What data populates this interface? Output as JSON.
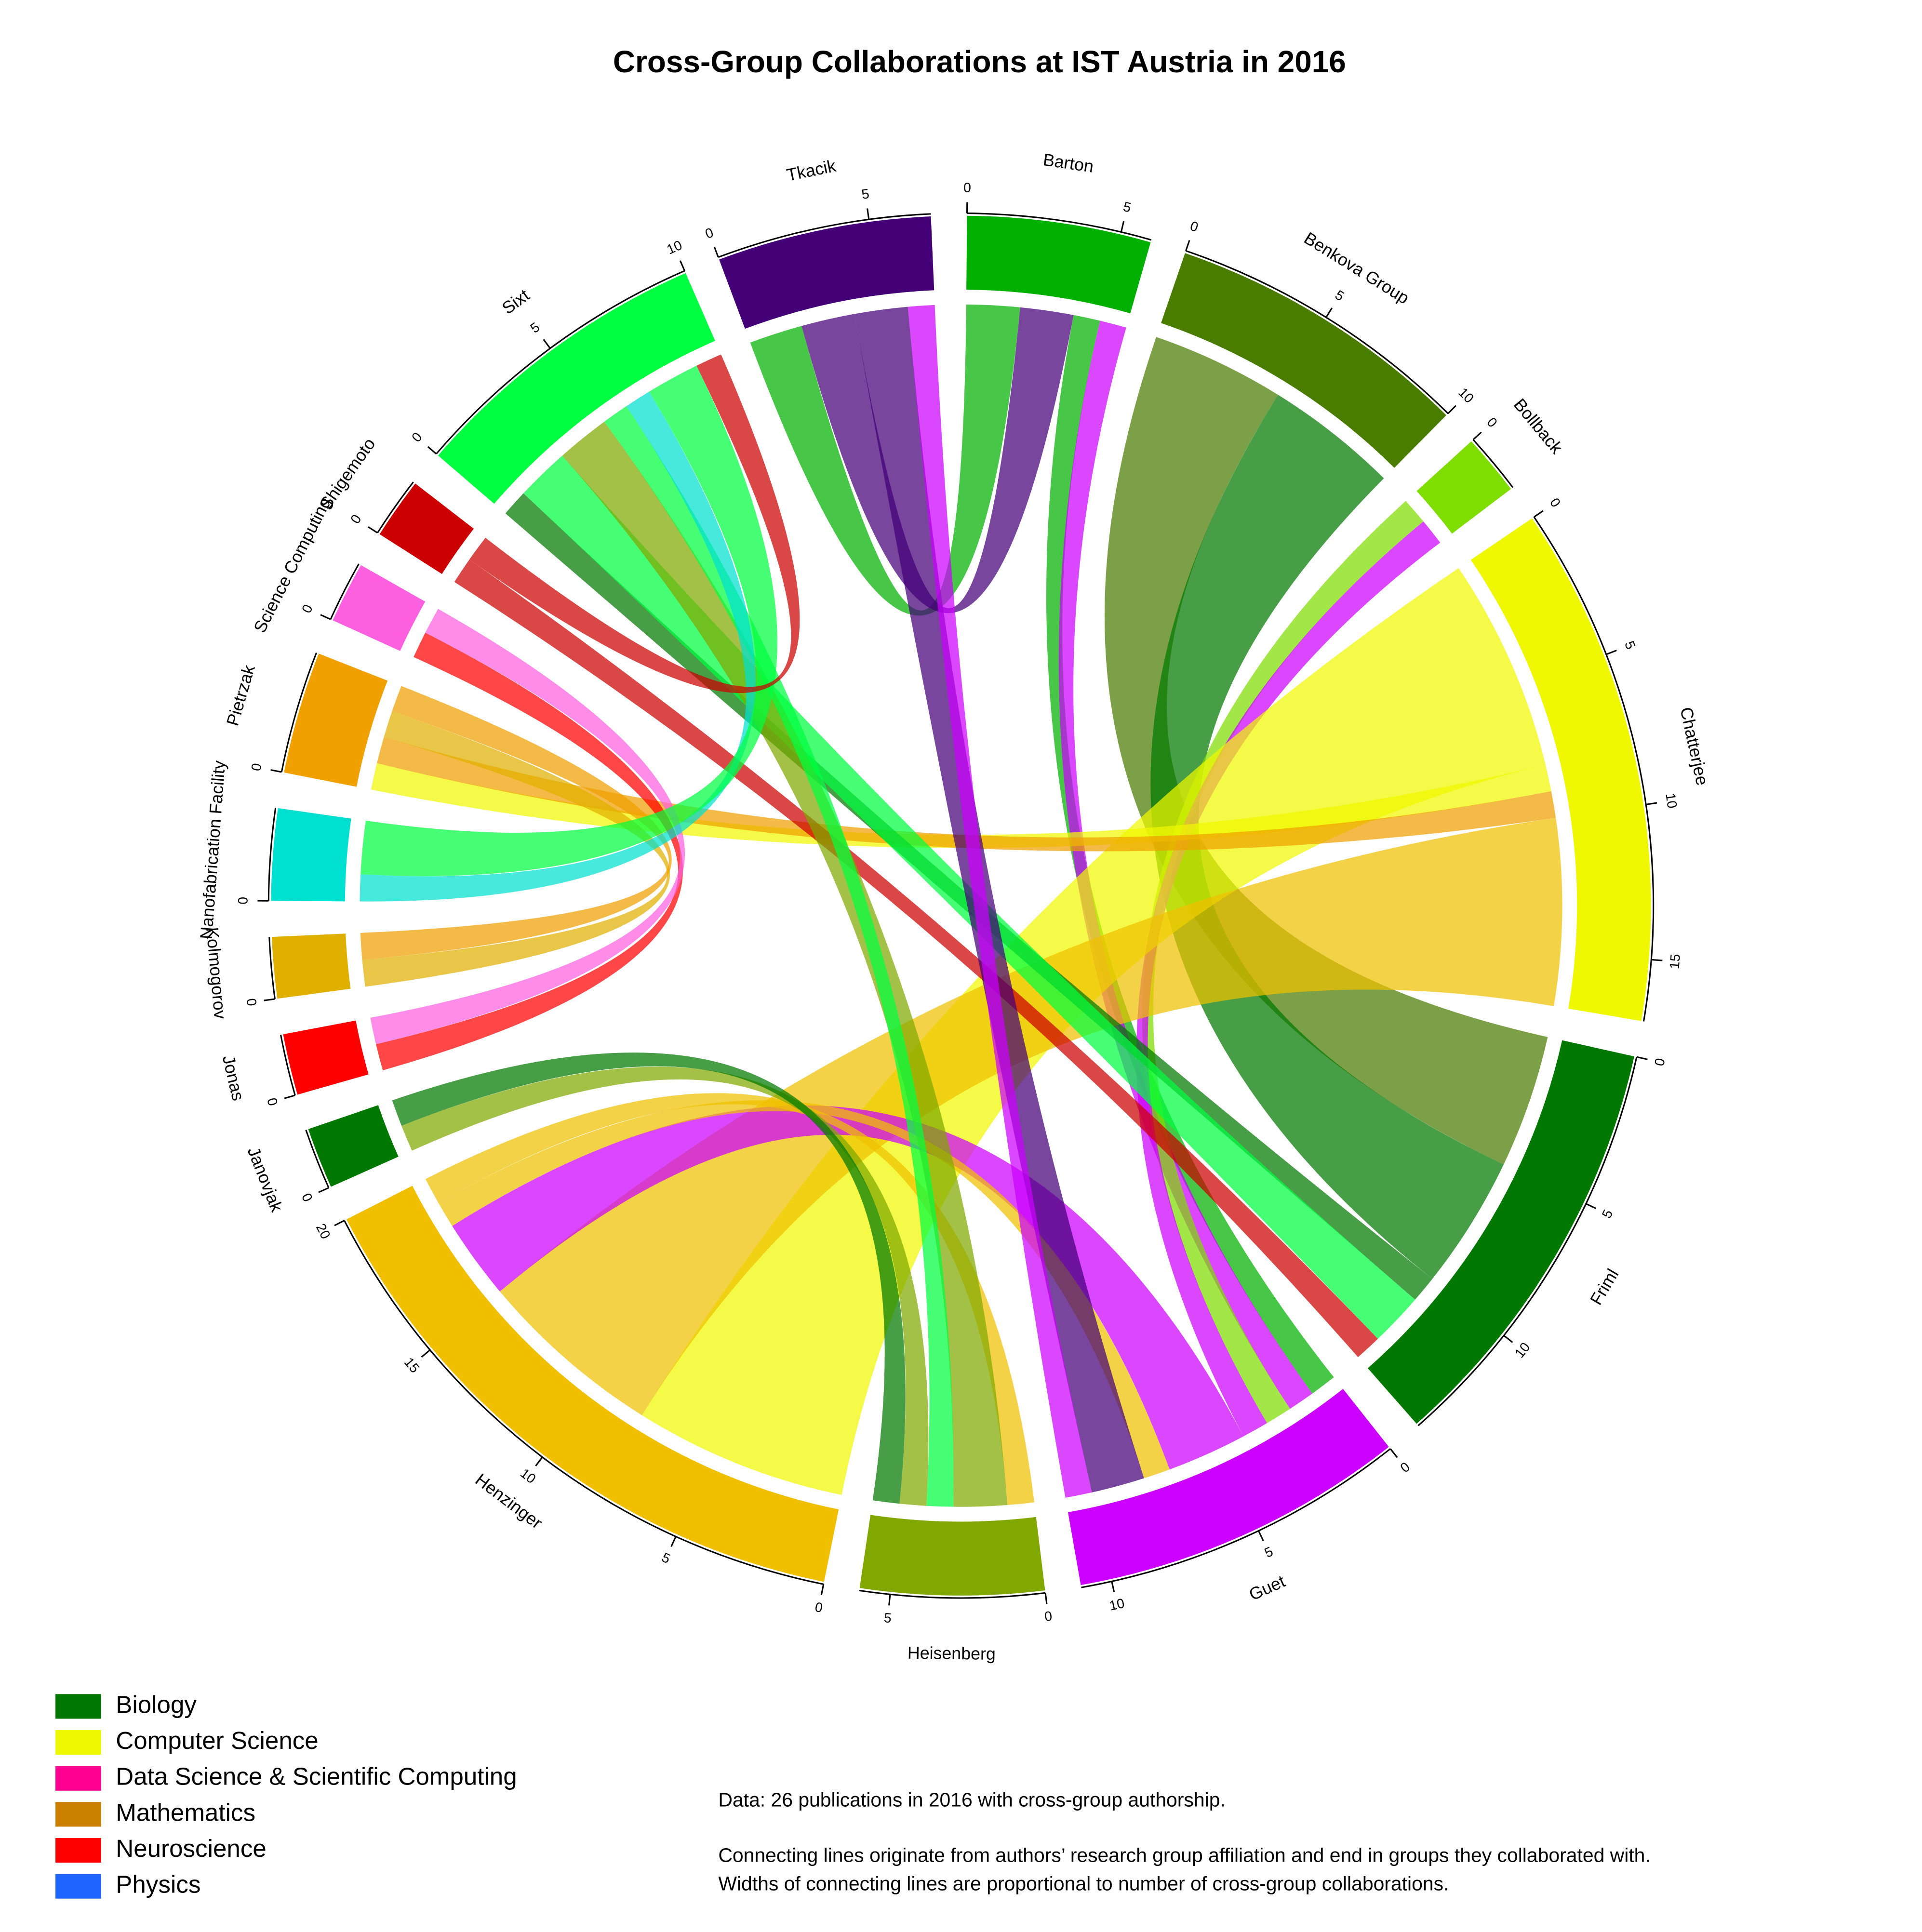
{
  "chart_data": {
    "type": "chord",
    "title": "Cross-Group Collaborations at IST Austria in 2016",
    "groups": [
      {
        "name": "Barton",
        "color": "#00b000",
        "ticks": [
          0,
          5
        ]
      },
      {
        "name": "Benkova Group",
        "color": "#4a7c00",
        "ticks": [
          0,
          5,
          10
        ]
      },
      {
        "name": "Bollback",
        "color": "#80dd00",
        "ticks": [
          0
        ]
      },
      {
        "name": "Chatterjee",
        "color": "#f0f800",
        "ticks": [
          0,
          5,
          10,
          15
        ]
      },
      {
        "name": "Friml",
        "color": "#007800",
        "ticks": [
          0,
          5,
          10
        ]
      },
      {
        "name": "Guet",
        "color": "#cc00ff",
        "ticks": [
          0,
          5,
          10
        ]
      },
      {
        "name": "Heisenberg",
        "color": "#80a800",
        "ticks": [
          0,
          5
        ]
      },
      {
        "name": "Henzinger",
        "color": "#f0c000",
        "ticks": [
          0,
          5,
          10,
          15,
          20
        ]
      },
      {
        "name": "Janovjak",
        "color": "#007800",
        "ticks": [
          0
        ]
      },
      {
        "name": "Jonas",
        "color": "#ff0000",
        "ticks": [
          0
        ]
      },
      {
        "name": "Kolmogorov",
        "color": "#e0b000",
        "ticks": [
          0
        ]
      },
      {
        "name": "Nanofabrication Facility",
        "color": "#00e0d0",
        "ticks": [
          0
        ]
      },
      {
        "name": "Pietrzak",
        "color": "#f0a000",
        "ticks": [
          0
        ]
      },
      {
        "name": "Science Computing",
        "color": "#ff60e0",
        "ticks": [
          0
        ]
      },
      {
        "name": "Shigemoto",
        "color": "#cc0000",
        "ticks": [
          0
        ]
      },
      {
        "name": "Sixt",
        "color": "#00ff40",
        "ticks": [
          0,
          5,
          10
        ]
      },
      {
        "name": "Tkacik",
        "color": "#440077",
        "ticks": [
          0,
          5
        ]
      }
    ],
    "links": [
      {
        "source": "Barton",
        "target": "Tkacik",
        "value": 2
      },
      {
        "source": "Tkacik",
        "target": "Barton",
        "value": 2
      },
      {
        "source": "Barton",
        "target": "Guet",
        "value": 1
      },
      {
        "source": "Guet",
        "target": "Barton",
        "value": 1
      },
      {
        "source": "Benkova Group",
        "target": "Friml",
        "value": 5
      },
      {
        "source": "Friml",
        "target": "Benkova Group",
        "value": 5
      },
      {
        "source": "Bollback",
        "target": "Guet",
        "value": 1
      },
      {
        "source": "Guet",
        "target": "Bollback",
        "value": 1
      },
      {
        "source": "Chatterjee",
        "target": "Henzinger",
        "value": 8
      },
      {
        "source": "Chatterjee",
        "target": "Pietrzak",
        "value": 1
      },
      {
        "source": "Pietrzak",
        "target": "Chatterjee",
        "value": 1
      },
      {
        "source": "Henzinger",
        "target": "Chatterjee",
        "value": 7
      },
      {
        "source": "Friml",
        "target": "Sixt",
        "value": 1
      },
      {
        "source": "Sixt",
        "target": "Friml",
        "value": 2
      },
      {
        "source": "Shigemoto",
        "target": "Friml",
        "value": 1
      },
      {
        "source": "Guet",
        "target": "Henzinger",
        "value": 3
      },
      {
        "source": "Henzinger",
        "target": "Guet",
        "value": 1
      },
      {
        "source": "Tkacik",
        "target": "Guet",
        "value": 2
      },
      {
        "source": "Guet",
        "target": "Tkacik",
        "value": 1
      },
      {
        "source": "Henzinger",
        "target": "Heisenberg",
        "value": 1
      },
      {
        "source": "Heisenberg",
        "target": "Sixt",
        "value": 2
      },
      {
        "source": "Sixt",
        "target": "Heisenberg",
        "value": 1
      },
      {
        "source": "Heisenberg",
        "target": "Janovjak",
        "value": 1
      },
      {
        "source": "Janovjak",
        "target": "Heisenberg",
        "value": 1
      },
      {
        "source": "Jonas",
        "target": "Science Computing",
        "value": 1
      },
      {
        "source": "Science Computing",
        "target": "Jonas",
        "value": 1
      },
      {
        "source": "Kolmogorov",
        "target": "Pietrzak",
        "value": 1
      },
      {
        "source": "Pietrzak",
        "target": "Kolmogorov",
        "value": 1
      },
      {
        "source": "Nanofabrication Facility",
        "target": "Sixt",
        "value": 1
      },
      {
        "source": "Sixt",
        "target": "Nanofabrication Facility",
        "value": 2
      },
      {
        "source": "Shigemoto",
        "target": "Sixt",
        "value": 1
      }
    ],
    "legend": [
      {
        "name": "Biology",
        "color": "#007800"
      },
      {
        "name": "Computer Science",
        "color": "#f0f800"
      },
      {
        "name": "Data Science & Scientific Computing",
        "color": "#ff0090"
      },
      {
        "name": "Mathematics",
        "color": "#cc8000"
      },
      {
        "name": "Neuroscience",
        "color": "#ff0000"
      },
      {
        "name": "Physics",
        "color": "#1e64ff"
      }
    ],
    "notes": [
      "Data: 26 publications in 2016 with cross-group authorship.",
      "Connecting lines originate from authors’ research group affiliation and end in groups they collaborated with.",
      "Widths of connecting lines are proportional to number of cross-group collaborations."
    ]
  }
}
